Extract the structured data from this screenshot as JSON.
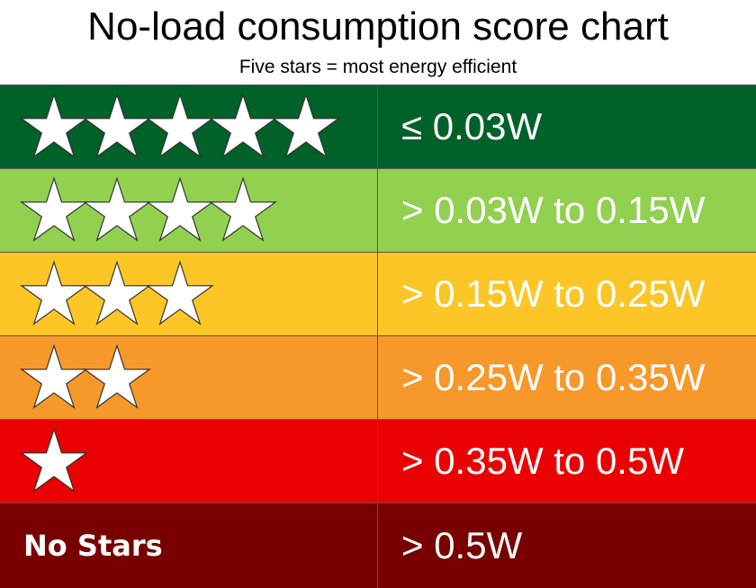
{
  "chart_data": {
    "type": "table",
    "title": "No-load consumption score chart",
    "subtitle": "Five stars = most energy efficient",
    "rows": [
      {
        "stars": 5,
        "label": "",
        "threshold": "≤ 0.03W",
        "color": "#006129"
      },
      {
        "stars": 4,
        "label": "",
        "threshold": "> 0.03W to 0.15W",
        "color": "#92d050"
      },
      {
        "stars": 3,
        "label": "",
        "threshold": "> 0.15W to 0.25W",
        "color": "#fcc626"
      },
      {
        "stars": 2,
        "label": "",
        "threshold": "> 0.25W to 0.35W",
        "color": "#f7982a"
      },
      {
        "stars": 1,
        "label": "",
        "threshold": "> 0.35W to 0.5W",
        "color": "#ea0000"
      },
      {
        "stars": 0,
        "label": "No Stars",
        "threshold": "> 0.5W",
        "color": "#780000"
      }
    ]
  }
}
